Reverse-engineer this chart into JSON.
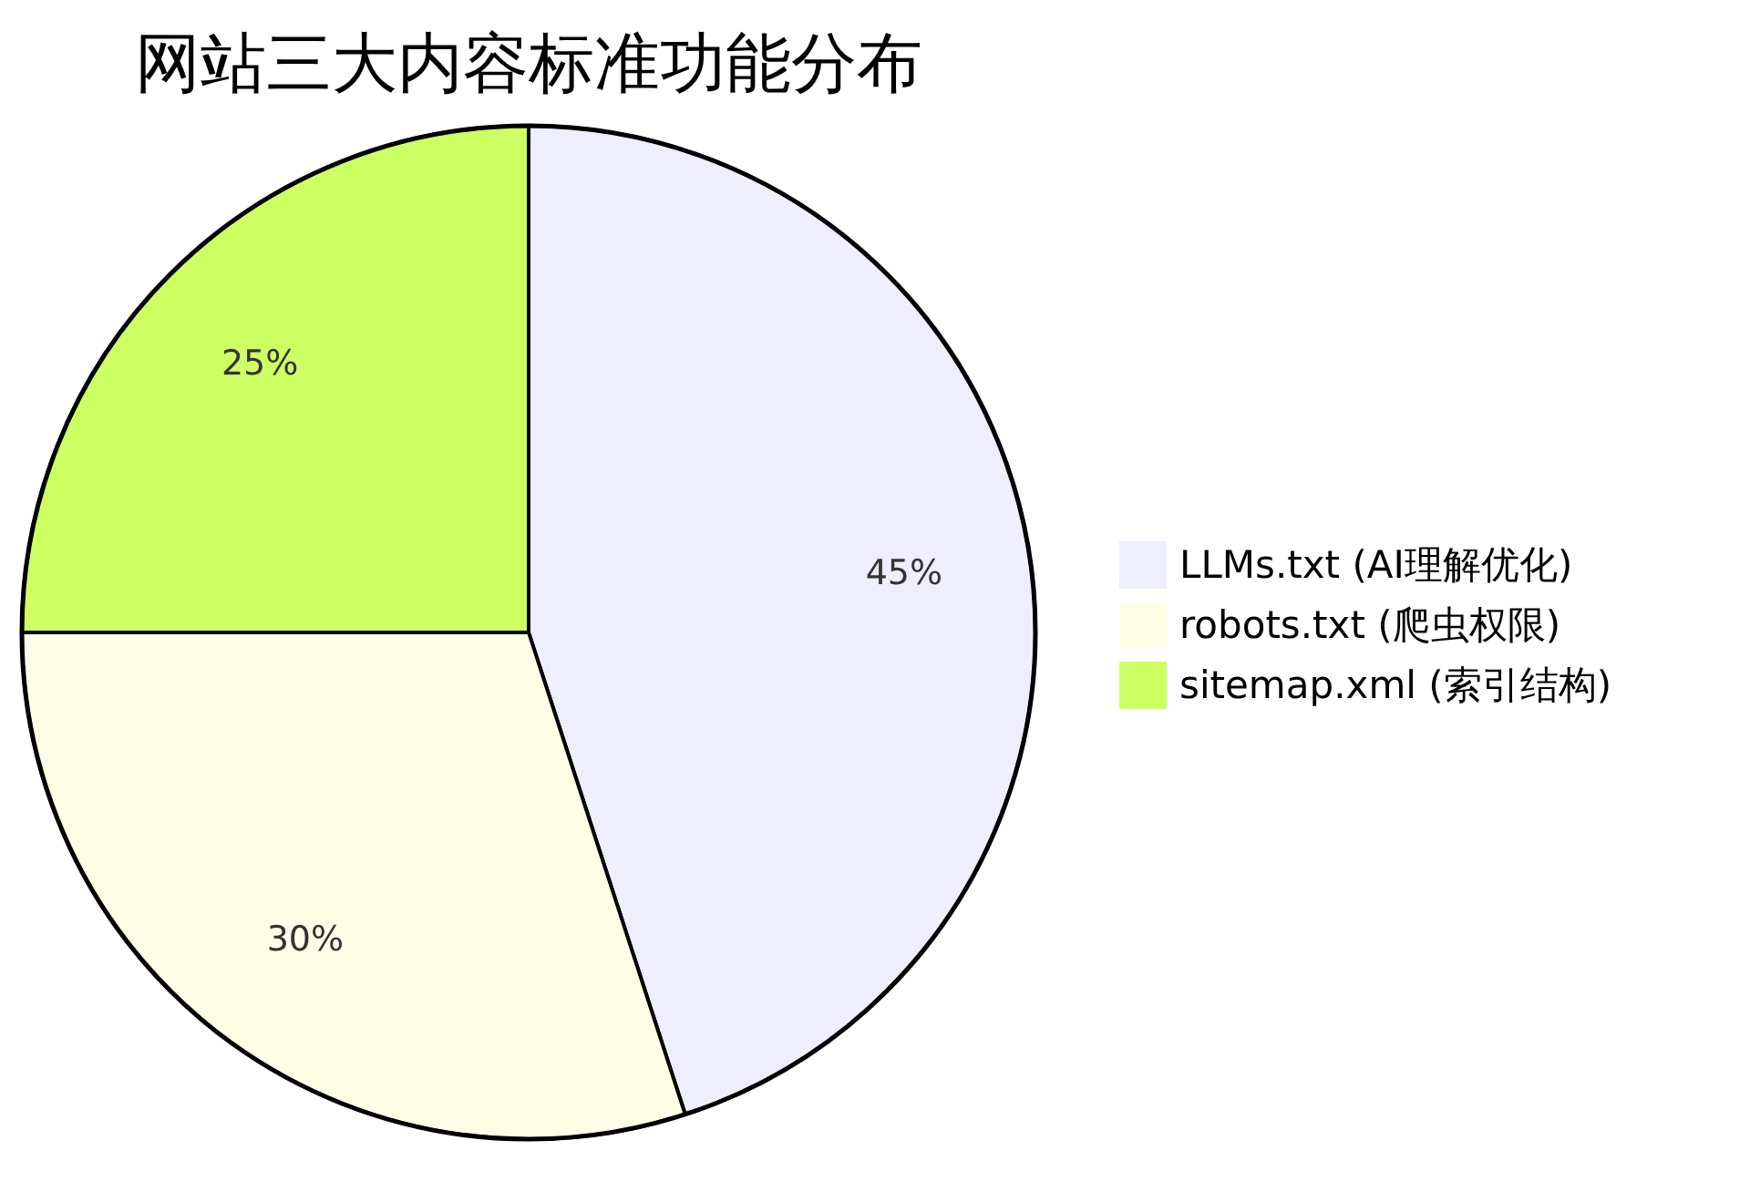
{
  "chart_data": {
    "type": "pie",
    "title": "网站三大内容标准功能分布",
    "categories": [
      "LLMs.txt (AI理解优化)",
      "robots.txt (爬虫权限)",
      "sitemap.xml (索引结构)"
    ],
    "values": [
      45,
      30,
      25
    ],
    "value_labels": [
      "45%",
      "30%",
      "25%"
    ],
    "colors": [
      "#eeeeff",
      "#ffffe8",
      "#cdff63"
    ],
    "legend": "right"
  }
}
